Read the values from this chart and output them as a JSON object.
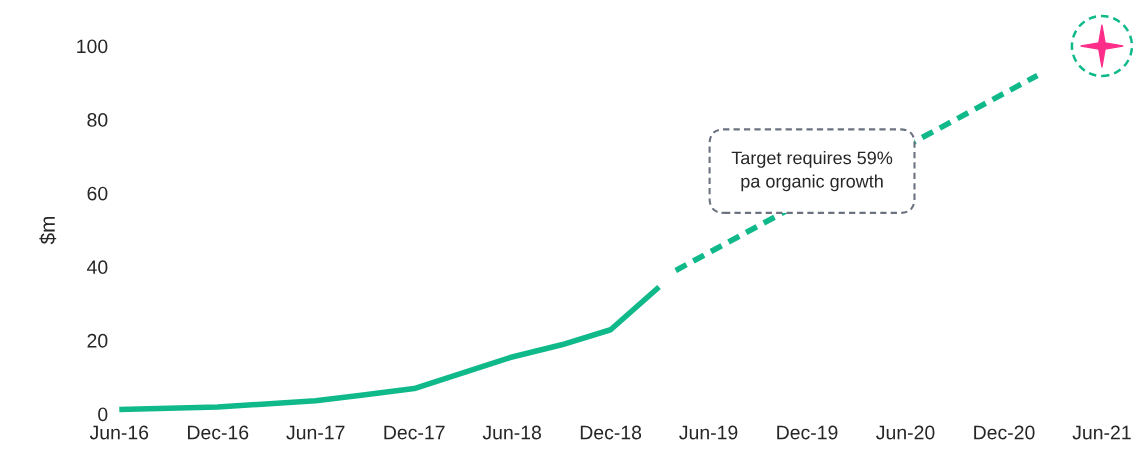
{
  "chart_data": {
    "type": "line",
    "ylabel": "$m",
    "xlim": [
      "2016-06",
      "2021-06"
    ],
    "ylim": [
      0,
      100
    ],
    "xticks": [
      {
        "value": "2016-06",
        "label": "Jun-16"
      },
      {
        "value": "2016-12",
        "label": "Dec-16"
      },
      {
        "value": "2017-06",
        "label": "Jun-17"
      },
      {
        "value": "2017-12",
        "label": "Dec-17"
      },
      {
        "value": "2018-06",
        "label": "Jun-18"
      },
      {
        "value": "2018-12",
        "label": "Dec-18"
      },
      {
        "value": "2019-06",
        "label": "Jun-19"
      },
      {
        "value": "2019-12",
        "label": "Dec-19"
      },
      {
        "value": "2020-06",
        "label": "Jun-20"
      },
      {
        "value": "2020-12",
        "label": "Dec-20"
      },
      {
        "value": "2021-06",
        "label": "Jun-21"
      }
    ],
    "yticks": [
      0,
      20,
      40,
      60,
      80,
      100
    ],
    "grid": false,
    "legend": false,
    "series": [
      {
        "color": "#10b98a",
        "line_style": "solid",
        "marker": "none",
        "x": [
          "2016-06",
          "2016-12",
          "2017-06",
          "2017-09",
          "2017-12",
          "2018-06",
          "2018-09",
          "2018-12",
          "2019-03"
        ],
        "values": [
          1.2,
          1.9,
          3.6,
          5.2,
          6.9,
          15.5,
          18.8,
          22.9,
          34.5
        ]
      },
      {
        "color": "#10b98a",
        "line_style": "dashed",
        "marker": "none",
        "x": [
          "2019-04",
          "2021-02"
        ],
        "values": [
          39,
          92
        ]
      },
      {
        "type": "scatter",
        "color": "#ff2d8a",
        "marker": "star",
        "x": [
          "2021-06"
        ],
        "values": [
          100
        ]
      }
    ],
    "annotations": [
      "Target requires 59%\npa organic growth"
    ]
  }
}
